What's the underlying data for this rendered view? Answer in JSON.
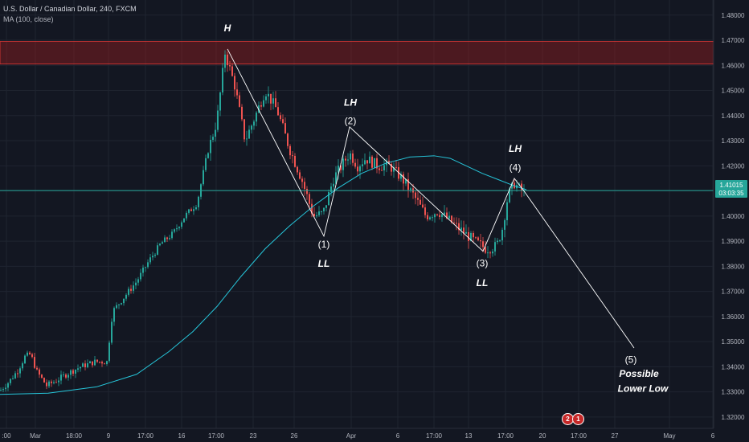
{
  "header": {
    "title": "U.S. Dollar / Canadian Dollar, 240, FXCM",
    "indicator": "MA (100, close)"
  },
  "colors": {
    "background": "#131722",
    "grid": "#1f2430",
    "up": "#26a69a",
    "down": "#ef5350",
    "ma": "#26c6da",
    "zone": "#b71c1c",
    "price_line": "#26a69a",
    "wave_line": "#ffffff"
  },
  "chart_data": {
    "type": "candlestick",
    "symbol": "U.S. Dollar / Canadian Dollar, 240, FXCM",
    "ylim": [
      1.3155,
      1.486
    ],
    "y_ticks": [
      "1.48000",
      "1.47000",
      "1.46000",
      "1.45000",
      "1.44000",
      "1.43000",
      "1.42000",
      "1.41000",
      "1.40000",
      "1.39000",
      "1.38000",
      "1.37000",
      "1.36000",
      "1.35000",
      "1.34000",
      "1.33000",
      "1.32000"
    ],
    "x_ticks": [
      ":00",
      "Mar",
      "18:00",
      "9",
      "17:00",
      "16",
      "17:00",
      "23",
      "26",
      "Apr",
      "6",
      "17:00",
      "13",
      "17:00",
      "20",
      "17:00",
      "27",
      "May",
      "6"
    ],
    "current_price": "1.41015",
    "countdown": "03:03:35",
    "resistance_zone": [
      1.4605,
      1.4695
    ],
    "price_path": [
      [
        0,
        1.3305
      ],
      [
        11,
        1.334
      ],
      [
        22,
        1.3385
      ],
      [
        31,
        1.344
      ],
      [
        38,
        1.345
      ],
      [
        46,
        1.338
      ],
      [
        58,
        1.3325
      ],
      [
        70,
        1.3345
      ],
      [
        85,
        1.3375
      ],
      [
        100,
        1.34
      ],
      [
        118,
        1.342
      ],
      [
        133,
        1.342
      ],
      [
        140,
        1.362
      ],
      [
        155,
        1.368
      ],
      [
        170,
        1.374
      ],
      [
        185,
        1.382
      ],
      [
        200,
        1.389
      ],
      [
        215,
        1.393
      ],
      [
        230,
        1.4
      ],
      [
        245,
        1.405
      ],
      [
        258,
        1.425
      ],
      [
        270,
        1.438
      ],
      [
        280,
        1.465
      ],
      [
        292,
        1.452
      ],
      [
        305,
        1.43
      ],
      [
        318,
        1.44
      ],
      [
        330,
        1.45
      ],
      [
        345,
        1.442
      ],
      [
        360,
        1.427
      ],
      [
        375,
        1.415
      ],
      [
        390,
        1.4
      ],
      [
        402,
        1.401
      ],
      [
        415,
        1.415
      ],
      [
        425,
        1.42
      ],
      [
        435,
        1.425
      ],
      [
        445,
        1.42
      ],
      [
        455,
        1.423
      ],
      [
        470,
        1.42
      ],
      [
        485,
        1.42
      ],
      [
        500,
        1.415
      ],
      [
        515,
        1.408
      ],
      [
        530,
        1.4
      ],
      [
        545,
        1.402
      ],
      [
        560,
        1.398
      ],
      [
        575,
        1.394
      ],
      [
        590,
        1.39
      ],
      [
        605,
        1.387
      ],
      [
        618,
        1.388
      ],
      [
        625,
        1.395
      ],
      [
        632,
        1.408
      ],
      [
        640,
        1.413
      ],
      [
        652,
        1.409
      ]
    ],
    "ma_series": {
      "name": "MA (100, close)",
      "points": [
        [
          0,
          1.329
        ],
        [
          60,
          1.3295
        ],
        [
          120,
          1.332
        ],
        [
          170,
          1.337
        ],
        [
          210,
          1.346
        ],
        [
          240,
          1.354
        ],
        [
          270,
          1.364
        ],
        [
          300,
          1.376
        ],
        [
          330,
          1.387
        ],
        [
          360,
          1.396
        ],
        [
          390,
          1.404
        ],
        [
          420,
          1.411
        ],
        [
          450,
          1.417
        ],
        [
          480,
          1.421
        ],
        [
          510,
          1.4235
        ],
        [
          540,
          1.424
        ],
        [
          560,
          1.423
        ],
        [
          580,
          1.42
        ],
        [
          600,
          1.417
        ],
        [
          620,
          1.4145
        ],
        [
          640,
          1.412
        ],
        [
          655,
          1.4105
        ]
      ]
    },
    "wave_path": [
      [
        283,
        1.4665
      ],
      [
        403,
        1.392
      ],
      [
        435,
        1.4355
      ],
      [
        601,
        1.386
      ],
      [
        640,
        1.415
      ],
      [
        652,
        1.41
      ],
      [
        789,
        1.3475
      ]
    ],
    "annotations": [
      {
        "x": 283,
        "price": 1.4735,
        "lines": [
          "H"
        ],
        "style": "bold"
      },
      {
        "x": 436,
        "price": 1.444,
        "lines": [
          "LH"
        ],
        "style": "bold"
      },
      {
        "x": 436,
        "price": 1.4365,
        "lines": [
          "(2)"
        ],
        "style": "wave"
      },
      {
        "x": 403,
        "price": 1.3875,
        "lines": [
          "(1)"
        ],
        "style": "wave"
      },
      {
        "x": 403,
        "price": 1.3798,
        "lines": [
          "LL"
        ],
        "style": "bold"
      },
      {
        "x": 600,
        "price": 1.38,
        "lines": [
          "(3)"
        ],
        "style": "wave"
      },
      {
        "x": 600,
        "price": 1.3722,
        "lines": [
          "LL"
        ],
        "style": "bold"
      },
      {
        "x": 641,
        "price": 1.4255,
        "lines": [
          "LH"
        ],
        "style": "bold"
      },
      {
        "x": 641,
        "price": 1.418,
        "lines": [
          "(4)"
        ],
        "style": "wave"
      },
      {
        "x": 785,
        "price": 1.3415,
        "lines": [
          "(5)"
        ],
        "style": "wave"
      },
      {
        "x": 795,
        "price": 1.336,
        "lines": [
          "Possible"
        ],
        "style": "bold"
      },
      {
        "x": 800,
        "price": 1.33,
        "lines": [
          "Lower Low"
        ],
        "style": "bold"
      }
    ],
    "event_badges": [
      "2",
      "1"
    ]
  }
}
